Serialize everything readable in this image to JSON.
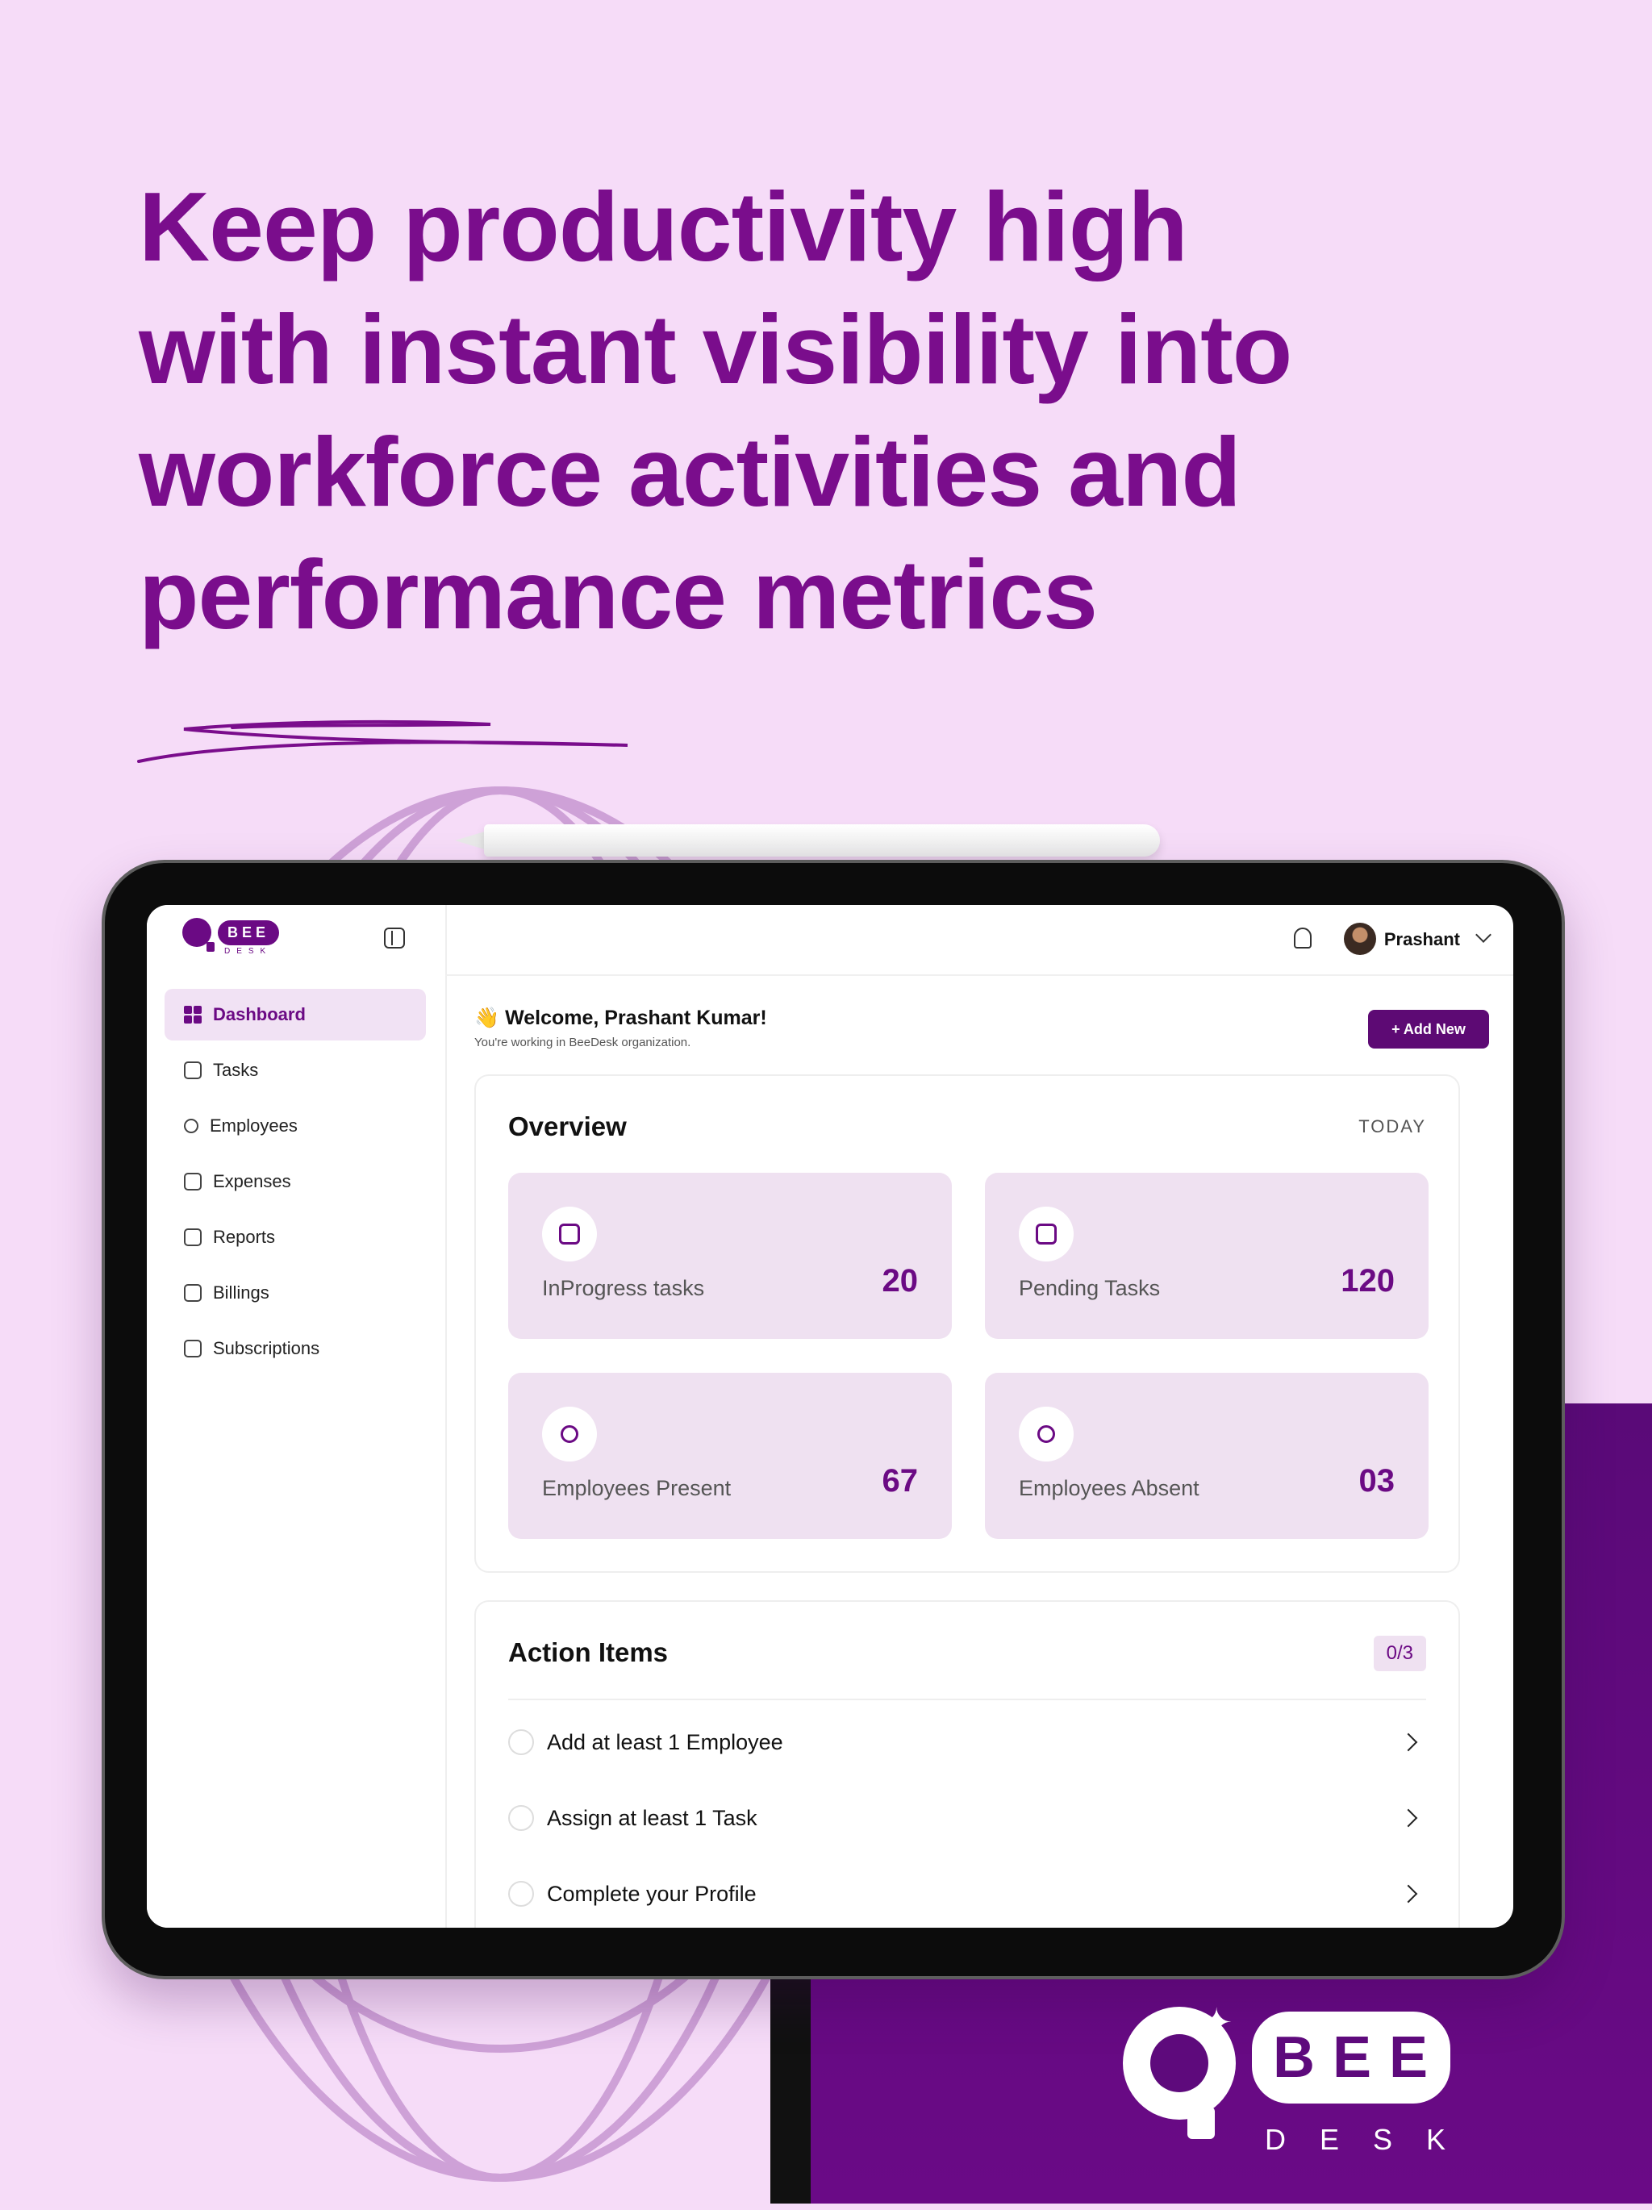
{
  "headline": "Keep productivity high with instant visibility into workforce activities and performance metrics",
  "colors": {
    "background": "#f6dcf8",
    "brand_purple": "#6b0a84",
    "dark_purple": "#5d0a74",
    "stat_card_bg": "#efe1f1"
  },
  "app": {
    "logo": {
      "bee": "BEE",
      "desk": "DESK"
    },
    "sidebar": {
      "items": [
        {
          "label": "Dashboard",
          "icon": "dashboard-grid-icon",
          "active": true
        },
        {
          "label": "Tasks",
          "icon": "tasks-icon"
        },
        {
          "label": "Employees",
          "icon": "employees-icon"
        },
        {
          "label": "Expenses",
          "icon": "wallet-icon"
        },
        {
          "label": "Reports",
          "icon": "reports-icon"
        },
        {
          "label": "Billings",
          "icon": "billing-icon"
        },
        {
          "label": "Subscriptions",
          "icon": "card-icon"
        }
      ]
    },
    "topbar": {
      "user_name": "Prashant",
      "notification_icon": "bell-icon"
    },
    "welcome": {
      "title": "👋 Welcome, Prashant Kumar!",
      "subtitle": "You're working in BeeDesk organization."
    },
    "add_new_label": "+ Add New",
    "overview": {
      "title": "Overview",
      "period": "TODAY",
      "stats": [
        {
          "label": "InProgress tasks",
          "value": "20",
          "icon": "calendar-clock-icon"
        },
        {
          "label": "Pending Tasks",
          "value": "120",
          "icon": "notepad-icon"
        },
        {
          "label": "Employees Present",
          "value": "67",
          "icon": "user-check-icon"
        },
        {
          "label": "Employees Absent",
          "value": "03",
          "icon": "user-x-icon"
        }
      ]
    },
    "action_items": {
      "title": "Action Items",
      "progress": "0/3",
      "items": [
        {
          "label": "Add at least 1 Employee"
        },
        {
          "label": "Assign at least 1 Task"
        },
        {
          "label": "Complete your Profile"
        }
      ]
    }
  },
  "brand_logo": {
    "bee": "BEE",
    "desk": "DESK"
  }
}
